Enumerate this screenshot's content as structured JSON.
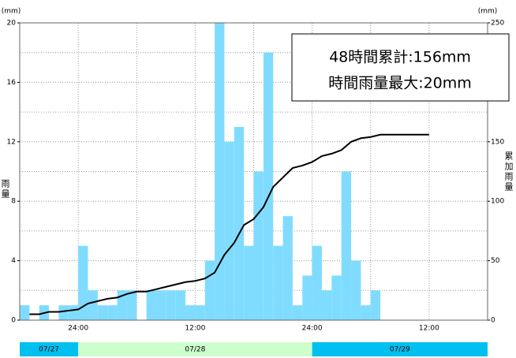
{
  "chart_data": {
    "type": "bar_line",
    "y_unit_left": "(mm)",
    "y_unit_right": "(mm)",
    "y_label": "雨量",
    "y2_label": "累加雨量",
    "annotations": [
      "48時間累計:156mm",
      "時間雨量最大:20mm"
    ],
    "xlim": [
      0,
      48
    ],
    "xticks": [
      {
        "value": 6,
        "label": "24:00"
      },
      {
        "value": 18,
        "label": "12:00"
      },
      {
        "value": 30,
        "label": "24:00"
      },
      {
        "value": 42,
        "label": "12:00"
      }
    ],
    "ylim": [
      0,
      20
    ],
    "yticks": [
      0,
      4,
      8,
      12,
      16,
      20
    ],
    "y2lim": [
      0,
      250
    ],
    "y2ticks": [
      0,
      50,
      100,
      150,
      200,
      250
    ],
    "grid": true,
    "series": [
      {
        "type": "bar",
        "color": "#80dcff",
        "values": [
          1,
          0,
          1,
          0,
          1,
          1,
          5,
          2,
          1,
          1,
          2,
          2,
          0,
          2,
          2,
          2,
          2,
          1,
          1,
          4,
          20,
          12,
          13,
          5,
          10,
          18,
          5,
          7,
          1,
          3,
          5,
          2,
          3,
          10,
          4,
          1,
          2,
          0,
          0,
          0,
          0,
          0,
          0,
          0,
          0,
          0,
          0,
          0
        ]
      },
      {
        "type": "line",
        "axis": "y2",
        "color": "#000000",
        "values": [
          5,
          5,
          7,
          7,
          8,
          9,
          14,
          16,
          18,
          19,
          22,
          24,
          24,
          26,
          28,
          30,
          32,
          33,
          35,
          40,
          55,
          65,
          80,
          85,
          95,
          112,
          120,
          128,
          130,
          133,
          138,
          140,
          143,
          150,
          153,
          154,
          156,
          156,
          156,
          156,
          156,
          156,
          null,
          null,
          null,
          null,
          null,
          null
        ]
      }
    ],
    "date_bands": [
      {
        "label": "07/27",
        "start": 0,
        "end": 6,
        "color": "#00c0f0"
      },
      {
        "label": "07/28",
        "start": 6,
        "end": 30,
        "color": "#ccffcc"
      },
      {
        "label": "07/29",
        "start": 30,
        "end": 48,
        "color": "#00c0f0"
      }
    ]
  }
}
